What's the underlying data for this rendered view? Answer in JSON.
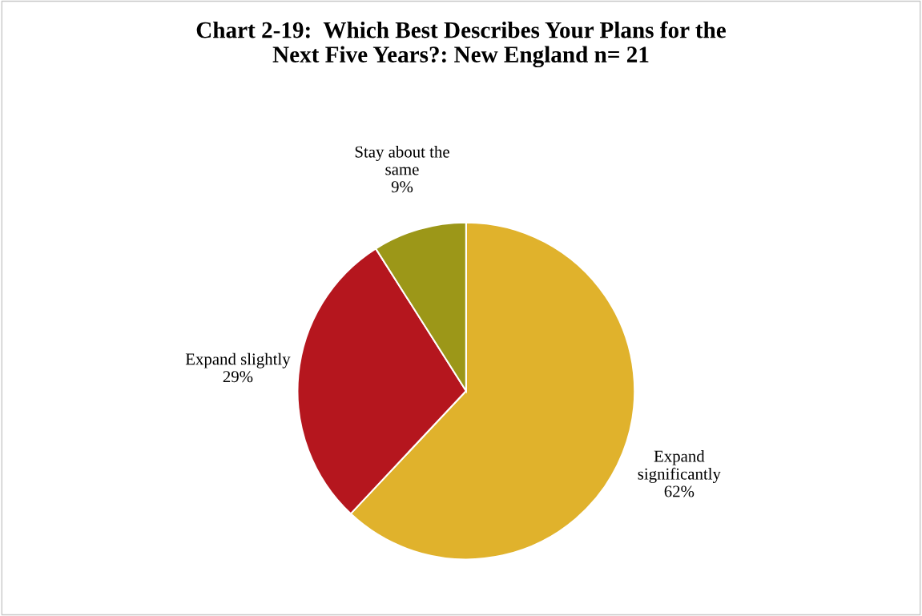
{
  "chart_data": {
    "type": "pie",
    "title": "Chart 2-19:  Which Best Describes Your Plans for the\nNext Five Years?: New England n= 21",
    "categories": [
      "Expand\nsignificantly",
      "Expand slightly",
      "Stay about the\nsame"
    ],
    "values": [
      62,
      29,
      9
    ],
    "value_labels": [
      "62%",
      "29%",
      "9%"
    ],
    "colors": [
      "#e0b22c",
      "#b5161e",
      "#9c9718"
    ]
  }
}
